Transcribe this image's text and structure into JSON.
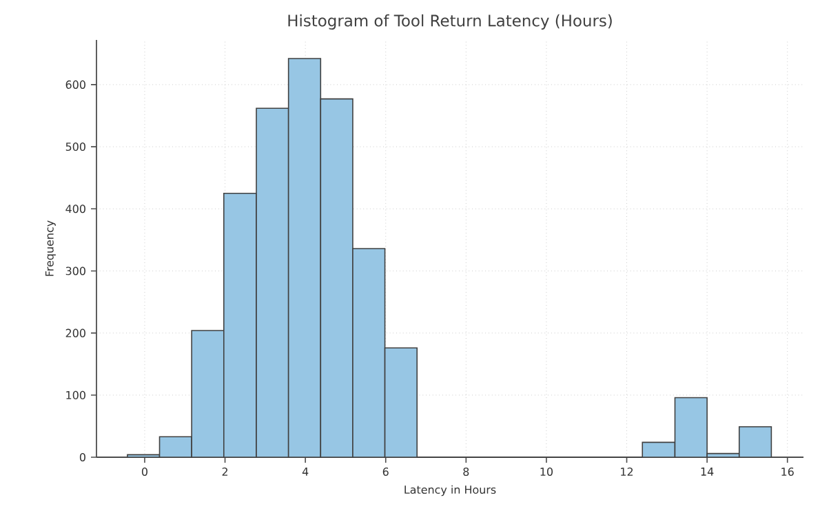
{
  "chart_data": {
    "type": "histogram",
    "title": "Histogram of Tool Return Latency (Hours)",
    "xlabel": "Latency in Hours",
    "ylabel": "Frequency",
    "bins": [
      -0.43,
      0.37,
      1.17,
      1.97,
      2.78,
      3.58,
      4.38,
      5.18,
      5.98,
      6.78,
      12.39,
      13.2,
      14.0,
      14.8,
      15.6
    ],
    "values": [
      4,
      33,
      204,
      425,
      562,
      642,
      577,
      336,
      176,
      0,
      24,
      96,
      6,
      49
    ],
    "color": "#97c6e4",
    "xlim": [
      -1.2,
      16.4
    ],
    "ylim": [
      0,
      672
    ],
    "xticks": [
      0,
      2,
      4,
      6,
      8,
      10,
      12,
      14,
      16
    ],
    "yticks": [
      0,
      100,
      200,
      300,
      400,
      500,
      600
    ],
    "grid": true
  }
}
